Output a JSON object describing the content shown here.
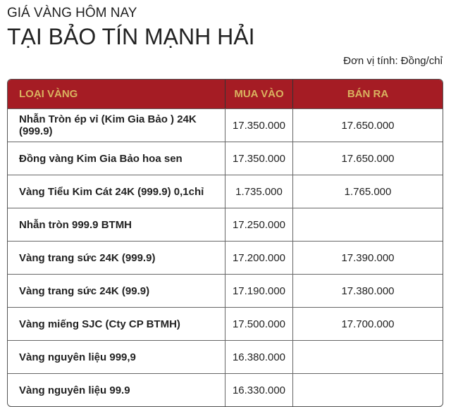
{
  "header": {
    "subtitle": "GIÁ VÀNG HÔM NAY",
    "title": "TẠI BẢO TÍN MẠNH HẢI",
    "unit": "Đơn vị tính: Đồng/chỉ"
  },
  "colors": {
    "header_bg": "#a51c24",
    "header_text": "#d9b25f"
  },
  "table": {
    "columns": [
      "LOẠI VÀNG",
      "MUA VÀO",
      "BÁN RA"
    ],
    "rows": [
      [
        "Nhẫn Tròn ép vỉ (Kim Gia Bảo ) 24K (999.9)",
        "17.350.000",
        "17.650.000"
      ],
      [
        "Đồng vàng Kim Gia Bảo hoa sen",
        "17.350.000",
        "17.650.000"
      ],
      [
        "Vàng Tiểu Kim Cát 24K (999.9) 0,1chỉ",
        "1.735.000",
        "1.765.000"
      ],
      [
        "Nhẫn tròn 999.9 BTMH",
        "17.250.000",
        ""
      ],
      [
        "Vàng trang sức 24K (999.9)",
        "17.200.000",
        "17.390.000"
      ],
      [
        "Vàng trang sức 24K (99.9)",
        "17.190.000",
        "17.380.000"
      ],
      [
        "Vàng miếng SJC (Cty CP BTMH)",
        "17.500.000",
        "17.700.000"
      ],
      [
        "Vàng nguyên liệu 999,9",
        "16.380.000",
        ""
      ],
      [
        "Vàng nguyên liệu 99.9",
        "16.330.000",
        ""
      ]
    ]
  }
}
